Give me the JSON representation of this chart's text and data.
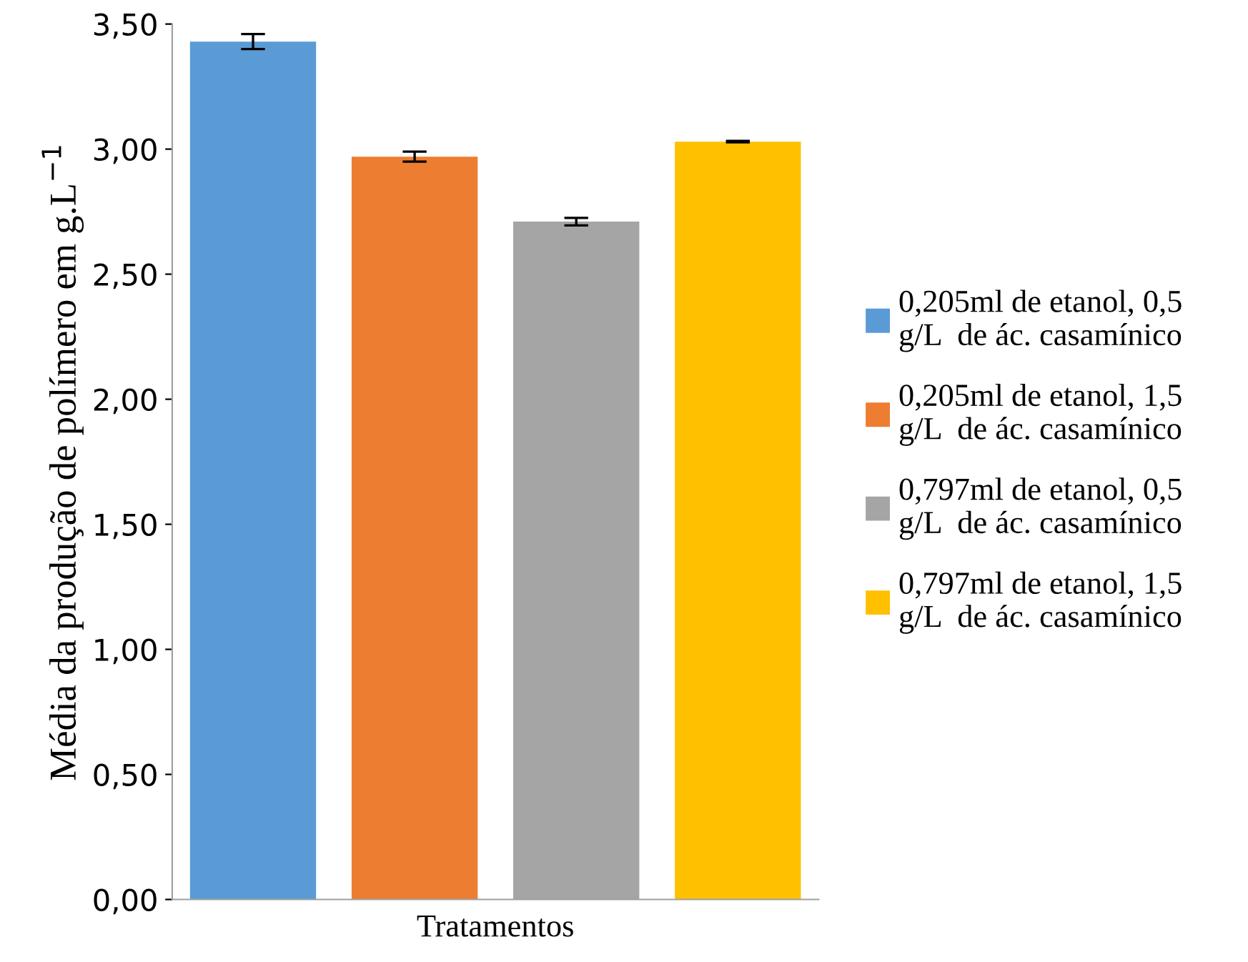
{
  "chart_data": {
    "type": "bar",
    "ylabel": "Média da produção de polímero em g.L$^{−1}$",
    "xlabel": "Tratamentos",
    "categories": [
      null
    ],
    "series": [
      {
        "name": "0,205ml de etanol, 0,5 g/L  de ác. casamínico",
        "color": "#5b9bd5",
        "values": [
          3.43
        ],
        "errors": [
          0.03
        ]
      },
      {
        "name": "0,205ml de etanol, 1,5 g/L  de ác. casamínico",
        "color": "#ed7d31",
        "values": [
          2.97
        ],
        "errors": [
          0.02
        ]
      },
      {
        "name": "0,797ml de etanol, 0,5 g/L  de ác. casamínico",
        "color": "#a5a5a5",
        "values": [
          2.71
        ],
        "errors": [
          0.015
        ]
      },
      {
        "name": "0,797ml de etanol, 1,5 g/L  de ác. casamínico",
        "color": "#ffc000",
        "values": [
          3.03
        ],
        "errors": [
          0.003
        ]
      }
    ],
    "ylim": [
      0,
      3.5
    ],
    "yticks": [
      {
        "value": 0,
        "label": "0,00"
      },
      {
        "value": 0.5,
        "label": "0,50"
      },
      {
        "value": 1,
        "label": "1,00"
      },
      {
        "value": 1.5,
        "label": "1,50"
      },
      {
        "value": 2,
        "label": "2,00"
      },
      {
        "value": 2.5,
        "label": "2,50"
      },
      {
        "value": 3,
        "label": "3,00"
      },
      {
        "value": 3.5,
        "label": "3,50"
      }
    ],
    "grid": false,
    "legend": "right"
  }
}
